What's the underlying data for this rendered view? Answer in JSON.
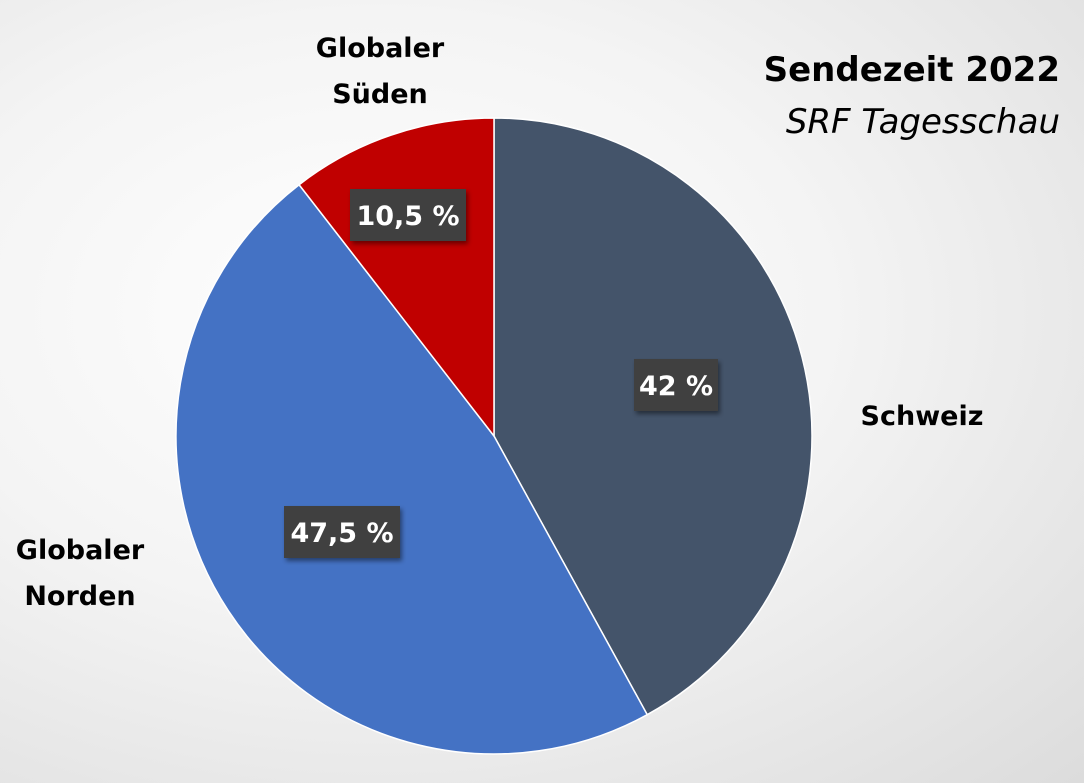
{
  "chart_data": {
    "type": "pie",
    "title": "Sendezeit 2022",
    "subtitle": "SRF Tagesschau",
    "slices": [
      {
        "label": "Schweiz",
        "label_lines": [
          "Schweiz"
        ],
        "value": 42,
        "value_label": "42 %",
        "color": "#44546A"
      },
      {
        "label": "Globaler Norden",
        "label_lines": [
          "Globaler",
          "Norden"
        ],
        "value": 47.5,
        "value_label": "47,5 %",
        "color": "#4472C4"
      },
      {
        "label": "Globaler Süden",
        "label_lines": [
          "Globaler",
          "Süden"
        ],
        "value": 10.5,
        "value_label": "10,5 %",
        "color": "#C00000"
      }
    ],
    "start_angle": "12 o'clock",
    "direction": "clockwise",
    "legend": "none",
    "data_label_box_color": "#404040"
  }
}
